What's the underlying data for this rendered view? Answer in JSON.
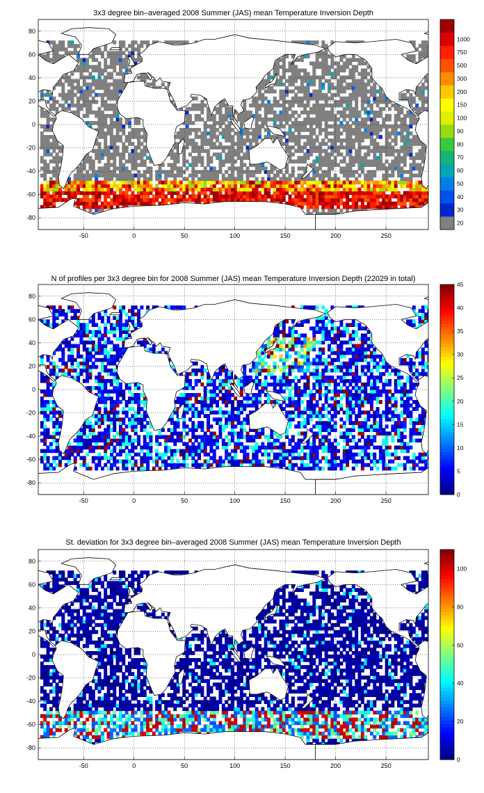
{
  "chart_data": [
    {
      "type": "heatmap",
      "title": "3x3 degree bin–averaged 2008 Summer (JAS) mean Temperature Inversion Depth",
      "xlim": [
        -95,
        292
      ],
      "ylim": [
        -90,
        90
      ],
      "xticks": [
        -50,
        0,
        50,
        100,
        150,
        200,
        250
      ],
      "yticks": [
        -80,
        -60,
        -40,
        -20,
        0,
        20,
        40,
        60,
        80
      ],
      "colorbar": {
        "scale": "categorical",
        "labels": [
          "20",
          "30",
          "40",
          "50",
          "60",
          "70",
          "80",
          "90",
          "100",
          "150",
          "200",
          "300",
          "500",
          "750",
          "1000"
        ],
        "colors": [
          "#808080",
          "#0028c8",
          "#0050f0",
          "#0080e6",
          "#00a8b4",
          "#14b478",
          "#3cc83c",
          "#96dc14",
          "#dcf000",
          "#ffff00",
          "#ffc800",
          "#ff8c00",
          "#ff5000",
          "#ff1e00",
          "#dc0000",
          "#a00000"
        ]
      },
      "gridcells": {
        "bin_deg": 3,
        "fill_rule": "ocean bins with data",
        "dominant_value": "≤ 20 (grey) over most of the ocean",
        "notes": "Deep inversions (100–1000) concentrated in a band near 50°S–70°S"
      }
    },
    {
      "type": "heatmap",
      "title": "N of profiles per 3x3 degree bin for 2008 Summer (JAS) mean Temperature Inversion Depth  (22029 in total)",
      "xlim": [
        -95,
        292
      ],
      "ylim": [
        -90,
        90
      ],
      "xticks": [
        -50,
        0,
        50,
        100,
        150,
        200,
        250
      ],
      "yticks": [
        -80,
        -60,
        -40,
        -20,
        0,
        20,
        40,
        60,
        80
      ],
      "colorbar": {
        "scale": "continuous",
        "min": 0,
        "max": 45,
        "ticks": [
          0,
          5,
          10,
          15,
          20,
          25,
          30,
          35,
          40,
          45
        ],
        "colormap": "jet"
      },
      "gridcells": {
        "bin_deg": 3,
        "dominant_value": "1–10 profiles per bin (blue)",
        "notes": "Highest counts (~30–45) in the NW Pacific and N Atlantic"
      }
    },
    {
      "type": "heatmap",
      "title": "St. deviation for 3x3 degree bin–averaged 2008 Summer (JAS) mean Temperature Inversion Depth",
      "xlim": [
        -95,
        292
      ],
      "ylim": [
        -90,
        90
      ],
      "xticks": [
        -50,
        0,
        50,
        100,
        150,
        200,
        250
      ],
      "yticks": [
        -80,
        -60,
        -40,
        -20,
        0,
        20,
        40,
        60,
        80
      ],
      "colorbar": {
        "scale": "continuous",
        "min": 0,
        "max": 110,
        "ticks": [
          0,
          20,
          40,
          60,
          80,
          100
        ],
        "colormap": "jet"
      },
      "gridcells": {
        "bin_deg": 3,
        "dominant_value": "near 0 (dark blue) over most of the ocean",
        "notes": "Large standard deviations (~80–110) in the Southern Ocean band near 55°S–70°S"
      }
    }
  ]
}
